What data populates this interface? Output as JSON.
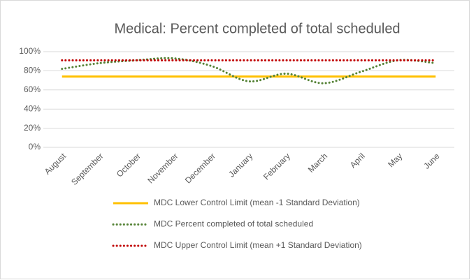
{
  "chart_data": {
    "type": "line",
    "title": "Medical: Percent completed of total scheduled",
    "categories": [
      "August",
      "September",
      "October",
      "November",
      "December",
      "January",
      "February",
      "March",
      "April",
      "May",
      "June"
    ],
    "series": [
      {
        "name": "MDC Lower Control Limit (mean -1 Standard Deviation)",
        "color": "#ffc000",
        "style": "solid",
        "values": [
          74,
          74,
          74,
          74,
          74,
          74,
          74,
          74,
          74,
          74,
          74
        ]
      },
      {
        "name": "MDC Percent completed of total scheduled",
        "color": "#548235",
        "style": "dotted",
        "values": [
          82,
          88,
          91,
          93,
          85,
          69,
          77,
          67,
          79,
          91,
          88
        ]
      },
      {
        "name": "MDC Upper Control Limit (mean +1 Standard Deviation)",
        "color": "#c00000",
        "style": "dotted",
        "values": [
          91,
          91,
          91,
          91,
          91,
          91,
          91,
          91,
          91,
          91,
          91
        ]
      }
    ],
    "ylim": [
      0,
      100
    ],
    "yticks": [
      {
        "value": 0,
        "label": "0%"
      },
      {
        "value": 20,
        "label": "20%"
      },
      {
        "value": 40,
        "label": "40%"
      },
      {
        "value": 60,
        "label": "60%"
      },
      {
        "value": 80,
        "label": "80%"
      },
      {
        "value": 100,
        "label": "100%"
      }
    ],
    "grid": true,
    "legend": "bottom"
  }
}
